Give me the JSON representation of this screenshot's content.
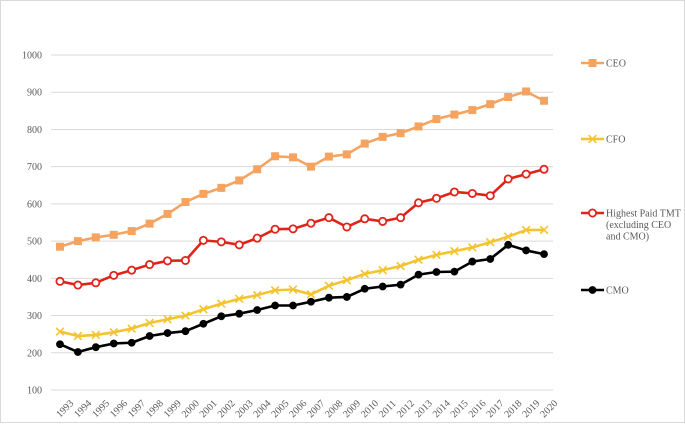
{
  "chart_data": {
    "type": "line",
    "title": "",
    "xlabel": "",
    "ylabel": "",
    "ylim": [
      100,
      1000
    ],
    "yticks": [
      100,
      200,
      300,
      400,
      500,
      600,
      700,
      800,
      900,
      1000
    ],
    "grid": "horizontal",
    "legend_position": "right",
    "categories": [
      "1993",
      "1994",
      "1995",
      "1996",
      "1997",
      "1998",
      "1999",
      "2000",
      "2001",
      "2002",
      "2003",
      "2004",
      "2005",
      "2006",
      "2007",
      "2008",
      "2009",
      "2010",
      "2011",
      "2012",
      "2013",
      "2014",
      "2015",
      "2016",
      "2017",
      "2018",
      "2019",
      "2020"
    ],
    "series": [
      {
        "name": "CEO",
        "legend_lines": [
          "CEO"
        ],
        "color": "#f4a460",
        "marker": "square",
        "values": [
          485,
          500,
          510,
          517,
          527,
          547,
          573,
          605,
          627,
          643,
          663,
          693,
          728,
          725,
          700,
          727,
          733,
          762,
          780,
          790,
          808,
          828,
          840,
          852,
          868,
          887,
          902,
          877
        ]
      },
      {
        "name": "CFO",
        "legend_lines": [
          "CFO"
        ],
        "color": "#f4c430",
        "marker": "x",
        "values": [
          257,
          245,
          248,
          255,
          265,
          280,
          290,
          300,
          317,
          332,
          345,
          355,
          368,
          370,
          357,
          380,
          395,
          412,
          422,
          433,
          450,
          463,
          473,
          483,
          497,
          512,
          530,
          530
        ]
      },
      {
        "name": "Highest Paid TMT (excluding CEO and CMO)",
        "legend_lines": [
          "Highest Paid TMT",
          "(excluding CEO",
          "and CMO)"
        ],
        "color": "#e0241b",
        "marker": "circle",
        "values": [
          392,
          382,
          388,
          408,
          422,
          437,
          447,
          448,
          502,
          498,
          490,
          508,
          532,
          533,
          548,
          563,
          538,
          560,
          553,
          563,
          603,
          615,
          632,
          628,
          622,
          667,
          680,
          693
        ]
      },
      {
        "name": "CMO",
        "legend_lines": [
          "CMO"
        ],
        "color": "#000000",
        "marker": "circle-filled",
        "values": [
          223,
          202,
          215,
          225,
          227,
          245,
          253,
          258,
          278,
          298,
          305,
          315,
          327,
          327,
          337,
          348,
          350,
          372,
          378,
          383,
          410,
          417,
          418,
          445,
          452,
          490,
          475,
          465
        ]
      }
    ]
  }
}
